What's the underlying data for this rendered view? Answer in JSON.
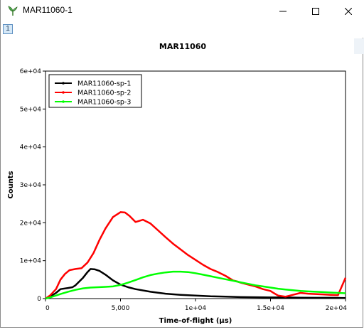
{
  "window": {
    "title": "MAR11060-1",
    "tab_label": "1"
  },
  "chart_data": {
    "type": "line",
    "title": "MAR11060",
    "xlabel": "Time-of-flight (µs)",
    "ylabel": "Counts",
    "xlim": [
      0,
      20000
    ],
    "ylim": [
      0,
      60000
    ],
    "xticks": [
      0,
      5000,
      10000,
      15000,
      20000
    ],
    "xtick_labels": [
      "0",
      "5,000",
      "1e+04",
      "1.5e+04",
      "2e+04"
    ],
    "yticks": [
      0,
      10000,
      20000,
      30000,
      40000,
      50000,
      60000
    ],
    "ytick_labels": [
      "0",
      "1e+04",
      "2e+04",
      "3e+04",
      "4e+04",
      "5e+04",
      "6e+04"
    ],
    "legend_position": "top-left",
    "grid": false,
    "series": [
      {
        "name": "MAR11060-sp-1",
        "color": "#000000",
        "points": [
          [
            0,
            0
          ],
          [
            300,
            500
          ],
          [
            700,
            1500
          ],
          [
            1000,
            2500
          ],
          [
            1500,
            2800
          ],
          [
            1800,
            3000
          ],
          [
            2000,
            3500
          ],
          [
            2500,
            5500
          ],
          [
            2800,
            7000
          ],
          [
            3000,
            7800
          ],
          [
            3300,
            7700
          ],
          [
            3600,
            7300
          ],
          [
            4000,
            6300
          ],
          [
            4500,
            4800
          ],
          [
            5000,
            3700
          ],
          [
            5500,
            3000
          ],
          [
            6000,
            2500
          ],
          [
            7000,
            1800
          ],
          [
            8000,
            1300
          ],
          [
            9000,
            1000
          ],
          [
            10000,
            800
          ],
          [
            11000,
            600
          ],
          [
            12000,
            500
          ],
          [
            13000,
            400
          ],
          [
            14000,
            350
          ],
          [
            15000,
            300
          ],
          [
            16000,
            300
          ],
          [
            17000,
            250
          ],
          [
            18000,
            200
          ],
          [
            19000,
            200
          ],
          [
            20000,
            150
          ]
        ]
      },
      {
        "name": "MAR11060-sp-2",
        "color": "#ff0000",
        "points": [
          [
            0,
            0
          ],
          [
            300,
            800
          ],
          [
            700,
            2500
          ],
          [
            1000,
            5000
          ],
          [
            1300,
            6500
          ],
          [
            1600,
            7500
          ],
          [
            2000,
            7800
          ],
          [
            2400,
            8000
          ],
          [
            2800,
            9500
          ],
          [
            3200,
            12000
          ],
          [
            3600,
            15500
          ],
          [
            4000,
            18500
          ],
          [
            4500,
            21500
          ],
          [
            5000,
            22800
          ],
          [
            5300,
            22700
          ],
          [
            5600,
            21800
          ],
          [
            6000,
            20200
          ],
          [
            6500,
            20800
          ],
          [
            7000,
            19800
          ],
          [
            7500,
            18000
          ],
          [
            8000,
            16200
          ],
          [
            8500,
            14500
          ],
          [
            9000,
            13000
          ],
          [
            9500,
            11500
          ],
          [
            10000,
            10200
          ],
          [
            10500,
            8900
          ],
          [
            11000,
            7800
          ],
          [
            11500,
            7000
          ],
          [
            12000,
            6000
          ],
          [
            12500,
            4800
          ],
          [
            12800,
            4500
          ],
          [
            13000,
            4200
          ],
          [
            13500,
            3700
          ],
          [
            14000,
            3200
          ],
          [
            14500,
            2500
          ],
          [
            15000,
            2000
          ],
          [
            15200,
            1500
          ],
          [
            15500,
            800
          ],
          [
            16000,
            500
          ],
          [
            16500,
            1000
          ],
          [
            17000,
            1500
          ],
          [
            17500,
            1300
          ],
          [
            18000,
            1200
          ],
          [
            18500,
            1100
          ],
          [
            19000,
            1000
          ],
          [
            19500,
            900
          ],
          [
            20000,
            5500
          ]
        ]
      },
      {
        "name": "MAR11060-sp-3",
        "color": "#00ff00",
        "points": [
          [
            0,
            0
          ],
          [
            300,
            300
          ],
          [
            700,
            800
          ],
          [
            1000,
            1200
          ],
          [
            1500,
            1800
          ],
          [
            2000,
            2300
          ],
          [
            2500,
            2700
          ],
          [
            3000,
            2900
          ],
          [
            3500,
            3000
          ],
          [
            4000,
            3100
          ],
          [
            4500,
            3200
          ],
          [
            5000,
            3600
          ],
          [
            5500,
            4200
          ],
          [
            6000,
            4900
          ],
          [
            6500,
            5600
          ],
          [
            7000,
            6200
          ],
          [
            7500,
            6600
          ],
          [
            8000,
            6900
          ],
          [
            8500,
            7100
          ],
          [
            9000,
            7100
          ],
          [
            9500,
            7000
          ],
          [
            10000,
            6700
          ],
          [
            10500,
            6300
          ],
          [
            11000,
            5900
          ],
          [
            11500,
            5500
          ],
          [
            12000,
            5100
          ],
          [
            12500,
            4700
          ],
          [
            13000,
            4300
          ],
          [
            13500,
            3900
          ],
          [
            14000,
            3500
          ],
          [
            14500,
            3200
          ],
          [
            15000,
            2900
          ],
          [
            15500,
            2600
          ],
          [
            16000,
            2400
          ],
          [
            16500,
            2200
          ],
          [
            17000,
            2000
          ],
          [
            17500,
            1900
          ],
          [
            18000,
            1800
          ],
          [
            18500,
            1700
          ],
          [
            19000,
            1600
          ],
          [
            19500,
            1500
          ],
          [
            20000,
            1400
          ]
        ]
      }
    ]
  }
}
